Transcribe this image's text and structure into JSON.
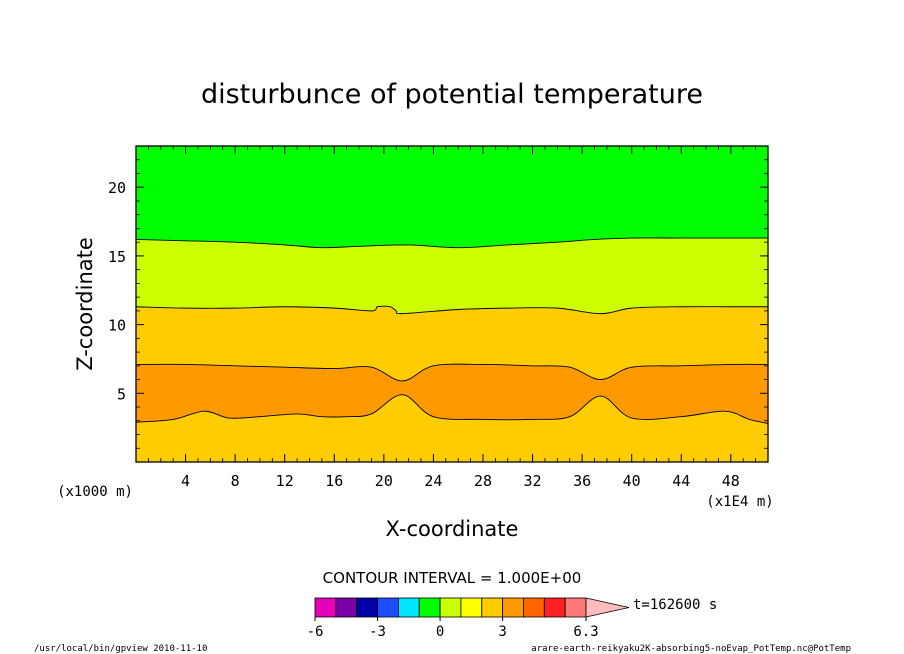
{
  "chart_data": {
    "type": "contour",
    "title": "disturbunce of potential temperature",
    "xlabel": "X-coordinate",
    "ylabel": "Z-coordinate",
    "x_unit": "(x1E4 m)",
    "y_unit": "(x1000 m)",
    "xlim": [
      0,
      51
    ],
    "ylim": [
      0,
      23
    ],
    "x_ticks": [
      "4",
      "8",
      "12",
      "16",
      "20",
      "24",
      "28",
      "32",
      "36",
      "40",
      "44",
      "48"
    ],
    "y_ticks": [
      "5",
      "10",
      "15",
      "20"
    ],
    "contour_interval_label": "CONTOUR INTERVAL = 1.000E+00",
    "time_label": "t=162600 s",
    "colorbar": {
      "levels": [
        -6,
        -5,
        -4,
        -3,
        -2,
        -1,
        0,
        1,
        2,
        3,
        4,
        5,
        6
      ],
      "colors": [
        "#e600b8",
        "#7a00a8",
        "#0000a8",
        "#1e4dff",
        "#00e6ff",
        "#00ff00",
        "#ccff00",
        "#ffff00",
        "#ffcc00",
        "#ff9900",
        "#ff6600",
        "#ff2020",
        "#ff7878"
      ],
      "extend_color": "#ffbcbc",
      "tick_labels": [
        "-6",
        "-3",
        "0",
        "3",
        "6.3"
      ]
    },
    "bands": [
      {
        "level": "0 to 1",
        "color": "#00ff00",
        "z_lower": [
          16.2,
          16.0,
          15.8,
          15.6,
          15.6,
          15.8,
          15.9,
          15.8,
          15.6,
          15.8,
          16.0,
          16.1,
          16.3,
          16.3,
          16.2,
          16.2,
          16.2
        ],
        "note": "top band above upper contour"
      },
      {
        "level": "1 to 2",
        "color": "#ccff00"
      },
      {
        "level": "2 to 3",
        "color": "#ffcc00"
      },
      {
        "level": "3 to 4",
        "color": "#ff9900"
      }
    ],
    "contours": [
      {
        "value": 1,
        "x": [
          0,
          4,
          8,
          12,
          15,
          18,
          22,
          26,
          30,
          34,
          37,
          40,
          44,
          48,
          51
        ],
        "z": [
          16.2,
          16.1,
          16.0,
          15.8,
          15.6,
          15.7,
          15.8,
          15.6,
          15.8,
          16.0,
          16.2,
          16.3,
          16.3,
          16.3,
          16.3
        ]
      },
      {
        "value": 2,
        "x": [
          0,
          4,
          8,
          12,
          16,
          19,
          19.5,
          20.5,
          21,
          21.5,
          26,
          30,
          34,
          37.5,
          40,
          44,
          48,
          51
        ],
        "z": [
          11.3,
          11.2,
          11.2,
          11.3,
          11.2,
          11.0,
          11.3,
          11.3,
          11.0,
          10.8,
          11.1,
          11.2,
          11.2,
          10.8,
          11.2,
          11.3,
          11.3,
          11.3
        ]
      },
      {
        "value": 3,
        "x": [
          0,
          4,
          8,
          12,
          16,
          19,
          21.5,
          24,
          28,
          32,
          35,
          37.5,
          40,
          44,
          48,
          51
        ],
        "z": [
          7.1,
          7.1,
          7.0,
          6.9,
          6.8,
          6.9,
          5.9,
          7.0,
          7.1,
          7.0,
          6.9,
          6.0,
          6.9,
          7.0,
          7.1,
          7.1
        ],
        "lower_x": [
          0,
          3,
          5.5,
          7.5,
          10,
          13,
          15,
          17,
          19,
          21.5,
          24,
          28,
          32,
          35,
          37.5,
          40,
          44,
          47.5,
          49.5,
          51
        ],
        "lower_z": [
          2.9,
          3.1,
          3.7,
          3.2,
          3.3,
          3.5,
          3.3,
          3.3,
          3.5,
          4.9,
          3.3,
          3.1,
          3.1,
          3.3,
          4.8,
          3.2,
          3.3,
          3.7,
          3.1,
          2.8
        ]
      }
    ]
  },
  "footer": {
    "left": "/usr/local/bin/gpview  2010-11-10",
    "right": "arare-earth-reikyaku2K-absorbing5-noEvap_PotTemp.nc@PotTemp"
  }
}
